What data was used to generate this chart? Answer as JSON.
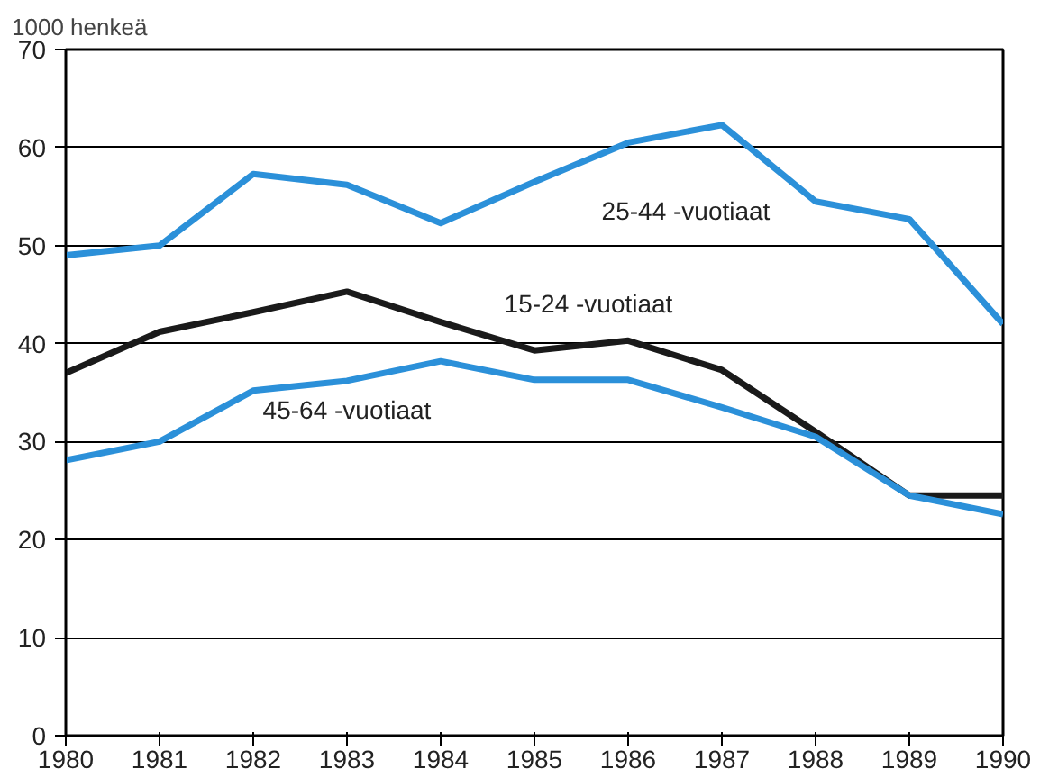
{
  "chart_data": {
    "type": "line",
    "ylabel": "1000 henkeä",
    "x": [
      1980,
      1981,
      1982,
      1983,
      1984,
      1985,
      1986,
      1987,
      1988,
      1989,
      1990
    ],
    "series": [
      {
        "name": "25-44 -vuotiaat",
        "color": "#2b90d9",
        "values": [
          49,
          50,
          57.3,
          56.2,
          52.3,
          56.5,
          60.5,
          62.3,
          54.5,
          52.7,
          42
        ]
      },
      {
        "name": "15-24 -vuotiaat",
        "color": "#1a1a1a",
        "values": [
          37,
          41.2,
          43.2,
          45.3,
          42.2,
          39.3,
          40.3,
          37.3,
          31,
          24.5,
          24.5
        ]
      },
      {
        "name": "45-64 -vuotiaat",
        "color": "#2b90d9",
        "values": [
          28.1,
          30,
          35.2,
          36.2,
          38.2,
          36.3,
          36.3,
          33.5,
          30.5,
          24.5,
          22.6
        ]
      }
    ],
    "xlim": [
      1980,
      1990
    ],
    "xticks": [
      1980,
      1981,
      1982,
      1983,
      1984,
      1985,
      1986,
      1987,
      1988,
      1989,
      1990
    ],
    "ylim": [
      0,
      70
    ],
    "yticks": [
      0,
      10,
      20,
      30,
      40,
      50,
      60,
      70
    ],
    "grid": "y",
    "marker": "none",
    "line_style": "solid"
  }
}
